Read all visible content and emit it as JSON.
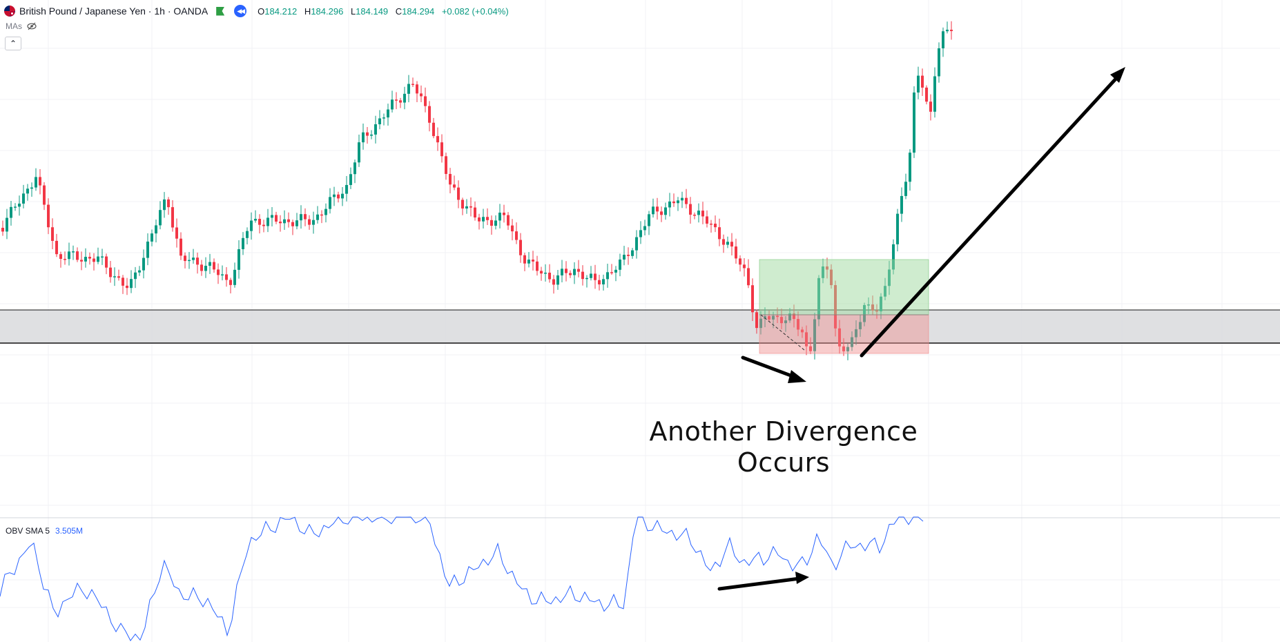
{
  "header": {
    "symbol_title": "British Pound / Japanese Yen · 1h · OANDA",
    "ohlc": {
      "open_label": "O",
      "open": "184.212",
      "high_label": "H",
      "high": "184.296",
      "low_label": "L",
      "low": "184.149",
      "close_label": "C",
      "close": "184.294",
      "change": "+0.082 (+0.04%)"
    },
    "colors": {
      "up": "#089981",
      "down": "#f23645",
      "obv_line": "#2962ff"
    }
  },
  "indicators": {
    "mas_label": "MAs",
    "collapse_glyph": "⌃"
  },
  "obv_pane": {
    "label": "OBV SMA 5",
    "value": "3.505M"
  },
  "annotation": {
    "line1": "Another Divergence",
    "line2": "Occurs"
  },
  "icons": [
    "uk-flag-icon",
    "green-flag-icon",
    "rewind-icon",
    "eye-hidden-icon",
    "chevron-up-icon"
  ]
}
